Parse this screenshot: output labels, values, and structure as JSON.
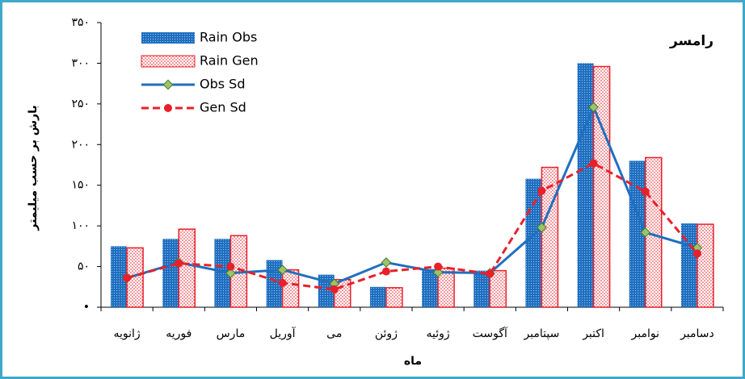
{
  "chart_data": {
    "type": "bar",
    "title": "رامسر",
    "y_label": "بارش بر حسب میلیمتر",
    "x_label": "ماه",
    "categories": [
      "ژانویه",
      "فوریه",
      "مارس",
      "آوریل",
      "می",
      "ژوئن",
      "ژوئیه",
      "آگوست",
      "سپتامبر",
      "اکتبر",
      "نوامبر",
      "دسامبر"
    ],
    "series": [
      {
        "name": "Rain Obs",
        "type": "bar",
        "color": "#1f6fc0",
        "values": [
          75,
          84,
          84,
          58,
          40,
          25,
          47,
          45,
          158,
          300,
          180,
          103
        ]
      },
      {
        "name": "Rain Gen",
        "type": "bar",
        "color": "#e8202a",
        "values": [
          73,
          96,
          88,
          46,
          34,
          24,
          48,
          45,
          172,
          296,
          184,
          102
        ]
      },
      {
        "name": "Obs Sd",
        "type": "line",
        "color": "#1f6fc0",
        "values": [
          36,
          55,
          42,
          46,
          29,
          55,
          43,
          42,
          98,
          246,
          92,
          73
        ]
      },
      {
        "name": "Gen Sd",
        "type": "line",
        "color": "#e8202a",
        "dashed": true,
        "values": [
          36,
          54,
          50,
          30,
          22,
          44,
          50,
          41,
          143,
          177,
          142,
          66
        ]
      }
    ],
    "ylim": [
      0,
      350
    ],
    "yticks": [
      {
        "value": 0,
        "label": "•"
      },
      {
        "value": 50,
        "label": "۵۰"
      },
      {
        "value": 100,
        "label": "۱۰۰"
      },
      {
        "value": 150,
        "label": "۱۵۰"
      },
      {
        "value": 200,
        "label": "۲۰۰"
      },
      {
        "value": 250,
        "label": "۲۵۰"
      },
      {
        "value": 300,
        "label": "۳۰۰"
      },
      {
        "value": 350,
        "label": "۳۵۰"
      }
    ],
    "legend": "upper left"
  }
}
